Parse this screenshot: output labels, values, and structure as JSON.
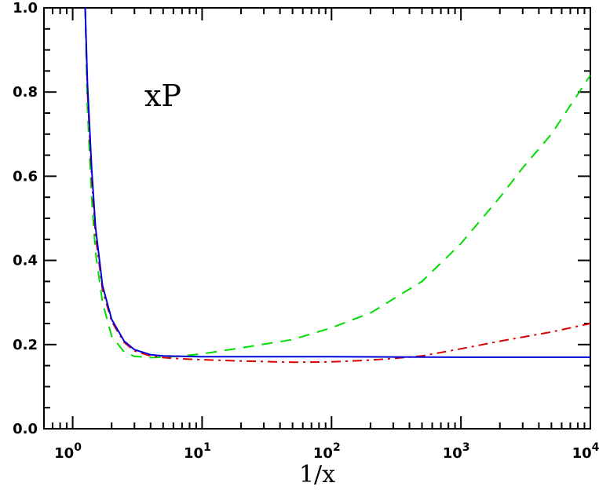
{
  "chart_data": {
    "type": "line",
    "xlabel": "1/x",
    "ylabel": "",
    "x_scale": "log",
    "xlim": [
      0.6,
      10000
    ],
    "ylim": [
      0.0,
      1.0
    ],
    "x_ticks": [
      {
        "value": 1,
        "base": "10",
        "exp": "0"
      },
      {
        "value": 10,
        "base": "10",
        "exp": "1"
      },
      {
        "value": 100,
        "base": "10",
        "exp": "2"
      },
      {
        "value": 1000,
        "base": "10",
        "exp": "3"
      },
      {
        "value": 10000,
        "base": "10",
        "exp": "4"
      }
    ],
    "y_ticks": [
      {
        "value": 0.0,
        "label": "0.0"
      },
      {
        "value": 0.2,
        "label": "0.2"
      },
      {
        "value": 0.4,
        "label": "0.4"
      },
      {
        "value": 0.6,
        "label": "0.6"
      },
      {
        "value": 0.8,
        "label": "0.8"
      },
      {
        "value": 1.0,
        "label": "1.0"
      }
    ],
    "annotation": "xP",
    "grid": false,
    "series": [
      {
        "color": "#0000dd",
        "dash": "solid",
        "points": [
          [
            1.25,
            1.0
          ],
          [
            1.3,
            0.82
          ],
          [
            1.4,
            0.62
          ],
          [
            1.5,
            0.48
          ],
          [
            1.7,
            0.34
          ],
          [
            2.0,
            0.26
          ],
          [
            2.5,
            0.208
          ],
          [
            3.0,
            0.188
          ],
          [
            4.0,
            0.176
          ],
          [
            5.0,
            0.173
          ],
          [
            7.0,
            0.172
          ],
          [
            10,
            0.171
          ],
          [
            30,
            0.171
          ],
          [
            100,
            0.171
          ],
          [
            1000,
            0.17
          ],
          [
            10000,
            0.17
          ]
        ]
      },
      {
        "color": "#dd0000",
        "dash": "dash-dot",
        "points": [
          [
            1.25,
            1.0
          ],
          [
            1.3,
            0.8
          ],
          [
            1.4,
            0.6
          ],
          [
            1.5,
            0.46
          ],
          [
            1.7,
            0.33
          ],
          [
            2.0,
            0.255
          ],
          [
            2.5,
            0.205
          ],
          [
            3.0,
            0.185
          ],
          [
            4.0,
            0.173
          ],
          [
            5.0,
            0.169
          ],
          [
            7.0,
            0.166
          ],
          [
            10,
            0.164
          ],
          [
            20,
            0.161
          ],
          [
            50,
            0.158
          ],
          [
            100,
            0.159
          ],
          [
            200,
            0.163
          ],
          [
            300,
            0.167
          ],
          [
            500,
            0.173
          ],
          [
            1000,
            0.19
          ],
          [
            2000,
            0.208
          ],
          [
            5000,
            0.23
          ],
          [
            10000,
            0.25
          ]
        ]
      },
      {
        "color": "#00dd00",
        "dash": "dashed",
        "points": [
          [
            1.25,
            1.0
          ],
          [
            1.3,
            0.76
          ],
          [
            1.4,
            0.55
          ],
          [
            1.5,
            0.42
          ],
          [
            1.7,
            0.3
          ],
          [
            2.0,
            0.22
          ],
          [
            2.5,
            0.182
          ],
          [
            3.0,
            0.172
          ],
          [
            4.0,
            0.169
          ],
          [
            5.0,
            0.17
          ],
          [
            7.0,
            0.173
          ],
          [
            10,
            0.178
          ],
          [
            20,
            0.192
          ],
          [
            50,
            0.212
          ],
          [
            100,
            0.24
          ],
          [
            200,
            0.275
          ],
          [
            500,
            0.35
          ],
          [
            1000,
            0.44
          ],
          [
            2000,
            0.55
          ],
          [
            3000,
            0.62
          ],
          [
            5000,
            0.7
          ],
          [
            10000,
            0.84
          ]
        ]
      }
    ]
  }
}
